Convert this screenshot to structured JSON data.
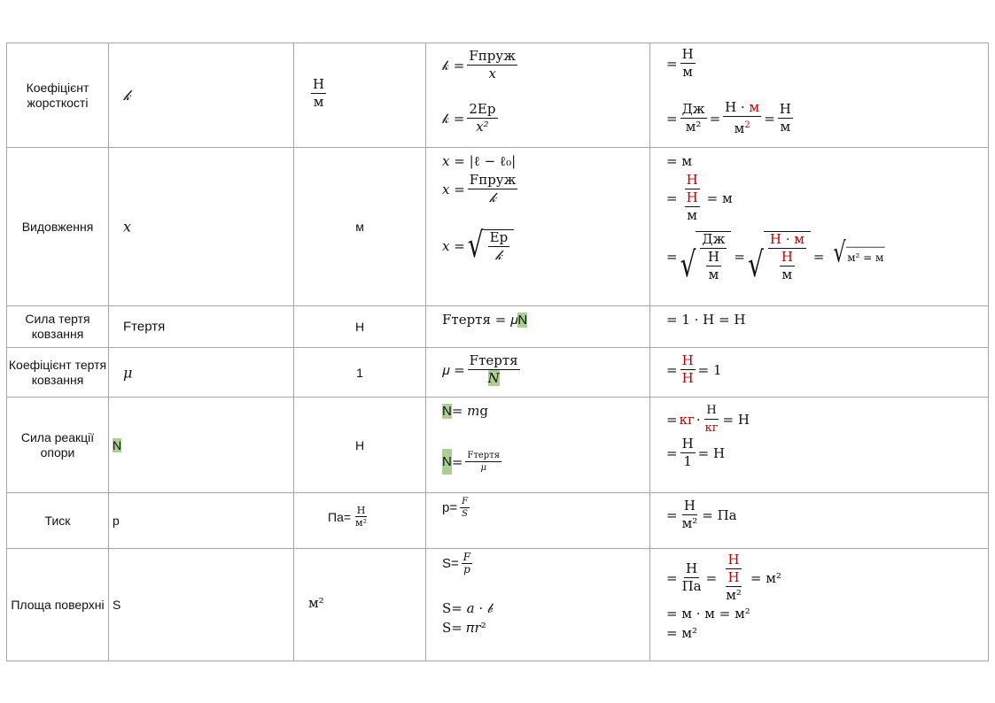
{
  "rows": [
    {
      "name": "Коефіцієнт жорсткості",
      "symbol": "𝓀",
      "unit_num": "Н",
      "unit_den": "м",
      "f1_lhs": "𝓀 =",
      "f1_num": "Fпруж",
      "f1_den": "𝑥",
      "f2_lhs": "𝓀 =",
      "f2_num": "2Eр",
      "f2_den": "𝑥²",
      "d1_num": "Н",
      "d1_den": "м",
      "d2_a_num": "Дж",
      "d2_a_den": "м²",
      "d2_b_num_a": "Н · ",
      "d2_b_num_b": "м",
      "d2_b_den_a": "м",
      "d2_b_den_b": "2",
      "d2_c_num": "Н",
      "d2_c_den": "м"
    },
    {
      "name": "Видовження",
      "symbol": "𝑥",
      "unit": "м",
      "f1": "𝑥 = |ℓ − ℓ₀|",
      "f2_lhs": "𝑥 =",
      "f2_num": "Fпруж",
      "f2_den": "𝓀",
      "f3_lhs": "𝑥 =",
      "f3_num": "Eр",
      "f3_den": "𝓀",
      "d1": "= м",
      "d2_num": "Н",
      "d2_den_num": "Н",
      "d2_den_den": "м",
      "d2_rhs": "= м",
      "d3_a_num": "Дж",
      "d3_a_den_num": "Н",
      "d3_a_den_den": "м",
      "d3_b_num": "Н · м",
      "d3_b_den_num": "Н",
      "d3_b_den_den": "м",
      "d3_c": "м² = м"
    },
    {
      "name": "Сила тертя ковзання",
      "symbol": "Fтертя",
      "unit": "Н",
      "f1": "Fтертя = 𝜇",
      "f1_hl": "N",
      "d1": "= 1 · Н = Н"
    },
    {
      "name": "Коефіцієнт тертя ковзання",
      "symbol": "𝜇",
      "unit": "1",
      "f1_lhs": "𝜇 =",
      "f1_num": "Fтертя",
      "f1_den": "N",
      "d1_num": "Н",
      "d1_den": "Н",
      "d1_rhs": "= 1"
    },
    {
      "name": "Сила реакції опори",
      "symbol": "N",
      "unit": "Н",
      "f1_hl": "N",
      "f1": "= 𝑚g",
      "f2_hl": "N",
      "f2_num": "Fтертя",
      "f2_den": "𝜇",
      "d1_a": "кг",
      "d1_num": "Н",
      "d1_den": "кг",
      "d1_rhs": "= Н",
      "d2_num": "Н",
      "d2_den": "1",
      "d2_rhs": "= Н"
    },
    {
      "name": "Тиск",
      "symbol": "p",
      "unit_a": "Па=",
      "unit_num": "Н",
      "unit_den": "м²",
      "f1_lhs": "p=",
      "f1_num": "F",
      "f1_den": "S",
      "d1_num": "Н",
      "d1_den": "м²",
      "d1_rhs": "= Па"
    },
    {
      "name": "Площа поверхні",
      "symbol": "S",
      "unit": "м²",
      "f1_lhs": "S=",
      "f1_num": "F",
      "f1_den": "p",
      "f2": "S= 𝑎 · 𝒷",
      "f3": "S= 𝜋𝑟²",
      "d1_a_num": "Н",
      "d1_a_den": "Па",
      "d1_b_num": "Н",
      "d1_b_den_num": "Н",
      "d1_b_den_den": "м²",
      "d1_rhs": "= м²",
      "d2": "= м · м = м²",
      "d3": "= м²"
    }
  ]
}
